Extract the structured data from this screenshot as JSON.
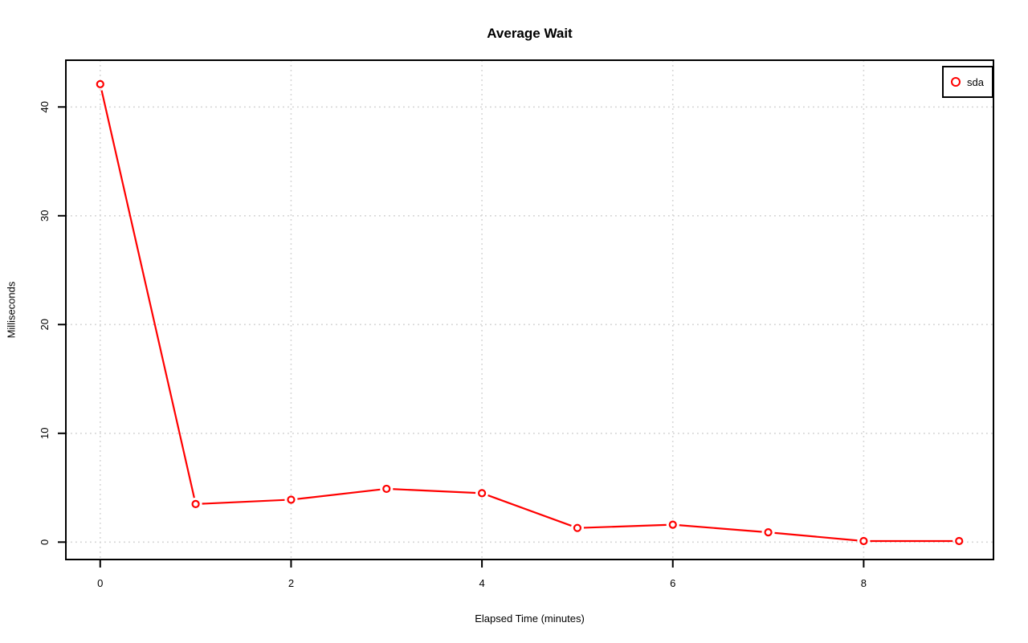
{
  "chart_data": {
    "type": "line",
    "title": "Average Wait",
    "xlabel": "Elapsed Time (minutes)",
    "ylabel": "Milliseconds",
    "series": [
      {
        "name": "sda",
        "color": "#ff0000",
        "marker": "open-circle",
        "x": [
          0,
          1,
          2,
          3,
          4,
          5,
          6,
          7,
          8,
          9
        ],
        "values": [
          42.1,
          3.5,
          3.9,
          4.9,
          4.5,
          1.3,
          1.6,
          0.9,
          0.1,
          0.1
        ]
      }
    ],
    "x_ticks": [
      0,
      2,
      4,
      6,
      8
    ],
    "y_ticks": [
      0,
      10,
      20,
      30,
      40
    ],
    "xlim": [
      -0.36,
      9.36
    ],
    "ylim": [
      -1.6,
      44.3
    ],
    "grid": true,
    "grid_style": "dotted",
    "grid_color": "#d3d3d3",
    "axis_color": "#000000",
    "background_color": "#ffffff",
    "legend": {
      "position": "topright",
      "entries": [
        {
          "label": "sda",
          "color": "#ff0000",
          "marker": "open-circle"
        }
      ]
    }
  }
}
